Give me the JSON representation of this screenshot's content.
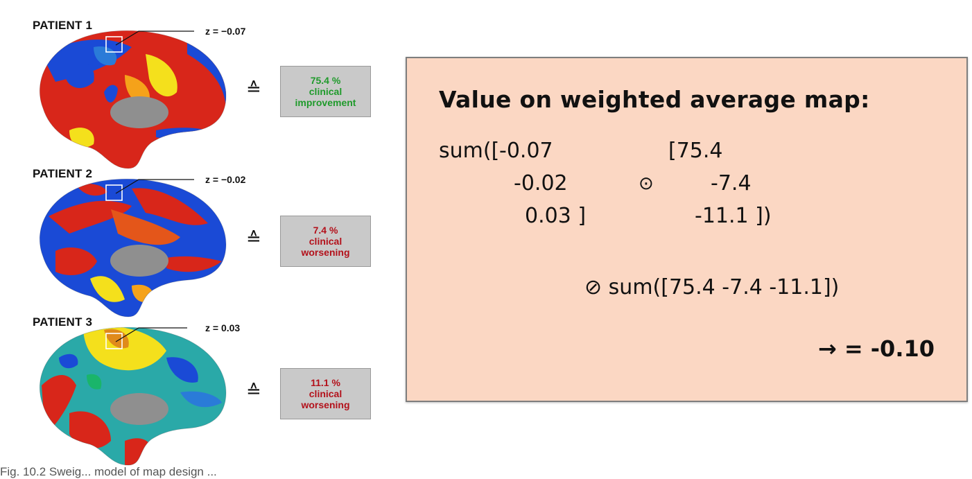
{
  "patients": [
    {
      "label": "PATIENT 1",
      "z": "z = −0.07",
      "outcome_value": "75.4 %",
      "outcome_line1": "clinical",
      "outcome_line2": "improvement",
      "tone": "good",
      "color": "#1f9a2b"
    },
    {
      "label": "PATIENT 2",
      "z": "z = −0.02",
      "outcome_value": "7.4 %",
      "outcome_line1": "clinical",
      "outcome_line2": "worsening",
      "tone": "bad",
      "color": "#b3111b"
    },
    {
      "label": "PATIENT 3",
      "z": "z = 0.03",
      "outcome_value": "11.1 %",
      "outcome_line1": "clinical",
      "outcome_line2": "worsening",
      "tone": "bad",
      "color": "#b3111b"
    }
  ],
  "equiv_symbol": "≙",
  "panel": {
    "title": "Value on weighted average map:",
    "sum_open": "sum([",
    "left_vector": [
      "-0.07",
      "-0.02",
      "0.03 ]"
    ],
    "operator": "⊙",
    "right_vector": [
      "[75.4",
      "-7.4",
      "-11.1 ])"
    ],
    "divide": "⊘ sum([75.4 -7.4 -11.1])",
    "result": "→ = -0.10",
    "background": "#fbd7c3"
  },
  "caption": "Fig. 10.2 Sweig...  model of map design ...",
  "colors": {
    "cortex_red": "#d8261a",
    "cortex_yellow": "#f4e01c",
    "cortex_blue": "#1a4ad6",
    "medial_wall": "#8f8f8f"
  }
}
